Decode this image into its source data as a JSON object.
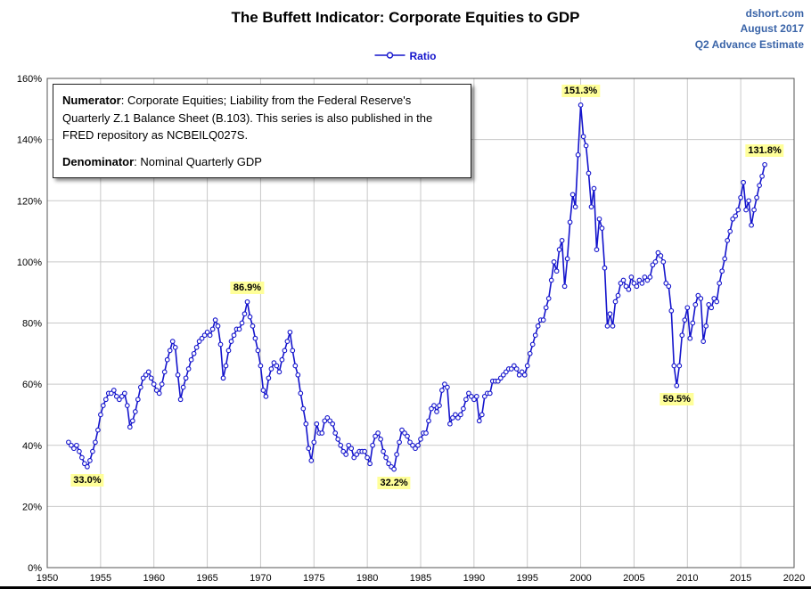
{
  "header": {
    "title": "The Buffett Indicator: Corporate Equities to GDP",
    "source": "dshort.com",
    "date": "August 2017",
    "estimate": "Q2 Advance Estimate",
    "accent_color": "#3A64A8"
  },
  "legend": {
    "label": "Ratio"
  },
  "info_box": {
    "numerator_label": "Numerator",
    "numerator_text": ": Corporate Equities; Liability from the Federal Reserve's Quarterly Z.1 Balance Sheet (B.103). This series is also published in the FRED repository as NCBEILQ027S.",
    "denominator_label": "Denominator",
    "denominator_text": ": Nominal Quarterly GDP"
  },
  "chart_data": {
    "type": "line",
    "title": "The Buffett Indicator: Corporate Equities to GDP",
    "series_name": "Ratio",
    "xlabel": "",
    "ylabel": "",
    "xlim": [
      1950,
      2020
    ],
    "ylim": [
      0,
      160
    ],
    "grid": true,
    "legend_position": "top-center",
    "x_start": 1952.0,
    "x_step": 0.25,
    "x_unit": "year (quarterly)",
    "y_unit": "percent of GDP",
    "values": [
      41,
      40,
      39,
      40,
      38,
      36,
      34,
      33,
      35,
      38,
      41,
      45,
      50,
      53,
      55,
      57,
      57,
      58,
      56,
      55,
      56,
      57,
      53,
      46,
      48,
      51,
      55,
      59,
      62,
      63,
      64,
      62,
      60,
      58,
      57,
      60,
      64,
      68,
      71,
      74,
      72,
      63,
      55,
      59,
      62,
      65,
      68,
      70,
      72,
      74,
      75,
      76,
      77,
      76,
      78,
      81,
      79,
      73,
      62,
      66,
      71,
      74,
      76,
      78,
      78,
      80,
      83,
      86.9,
      82,
      79,
      75,
      71,
      66,
      58,
      56,
      62,
      65,
      67,
      66,
      64,
      68,
      71,
      74,
      77,
      71,
      66,
      63,
      57,
      52,
      47,
      39,
      35,
      41,
      47,
      44,
      44,
      48,
      49,
      48,
      47,
      44,
      42,
      40,
      38,
      37,
      40,
      39,
      36,
      37,
      38,
      38,
      38,
      36,
      34,
      40,
      43,
      44,
      42,
      38,
      36,
      34,
      33,
      32.2,
      37,
      41,
      45,
      44,
      43,
      41,
      40,
      39,
      40,
      42,
      44,
      44,
      48,
      52,
      53,
      51,
      53,
      58,
      60,
      59,
      47,
      49,
      50,
      49,
      50,
      52,
      55,
      57,
      56,
      55,
      56,
      48,
      50,
      56,
      57,
      57,
      61,
      61,
      61,
      62,
      63,
      64,
      65,
      65,
      66,
      65,
      63,
      64,
      63,
      66,
      70,
      73,
      76,
      79,
      81,
      81,
      85,
      88,
      94,
      100,
      97,
      104,
      107,
      92,
      101,
      113,
      122,
      118,
      135,
      151.3,
      141,
      138,
      129,
      118,
      124,
      104,
      114,
      111,
      98,
      79,
      83,
      79,
      87,
      89,
      93,
      94,
      92,
      91,
      95,
      93,
      92,
      94,
      93,
      95,
      94,
      95,
      99,
      100,
      103,
      102,
      100,
      93,
      92,
      84,
      66,
      59.5,
      66,
      76,
      81,
      85,
      75,
      80,
      86,
      89,
      88,
      74,
      79,
      86,
      85,
      88,
      87,
      93,
      97,
      101,
      107,
      110,
      114,
      115,
      117,
      121,
      126,
      117,
      120,
      112,
      117,
      121,
      125,
      128,
      131.8
    ],
    "x_tick_values": [
      1950,
      1955,
      1960,
      1965,
      1970,
      1975,
      1980,
      1985,
      1990,
      1995,
      2000,
      2005,
      2010,
      2015,
      2020
    ],
    "x_tick_labels": [
      "1950",
      "1955",
      "1960",
      "1965",
      "1970",
      "1975",
      "1980",
      "1985",
      "1990",
      "1995",
      "2000",
      "2005",
      "2010",
      "2015",
      "2020"
    ],
    "y_tick_values": [
      0,
      20,
      40,
      60,
      80,
      100,
      120,
      140,
      160
    ],
    "y_tick_labels": [
      "0%",
      "20%",
      "40%",
      "60%",
      "80%",
      "100%",
      "120%",
      "140%",
      "160%"
    ],
    "annotations": [
      {
        "label": "33.0%",
        "x": 1953.75,
        "y": 33.0,
        "placement": "below"
      },
      {
        "label": "86.9%",
        "x": 1968.75,
        "y": 86.9,
        "placement": "above"
      },
      {
        "label": "32.2%",
        "x": 1982.5,
        "y": 32.2,
        "placement": "below"
      },
      {
        "label": "151.3%",
        "x": 2000.0,
        "y": 151.3,
        "placement": "above"
      },
      {
        "label": "59.5%",
        "x": 2009.0,
        "y": 59.5,
        "placement": "below"
      },
      {
        "label": "131.8%",
        "x": 2017.25,
        "y": 131.8,
        "placement": "above"
      }
    ],
    "colors": {
      "line": "#1414CC",
      "marker_fill": "#FFFFFF",
      "grid": "#C9C9C9",
      "frame": "#555555",
      "annotation_bg": "#FFFF99",
      "header_blue": "#3A64A8"
    }
  }
}
